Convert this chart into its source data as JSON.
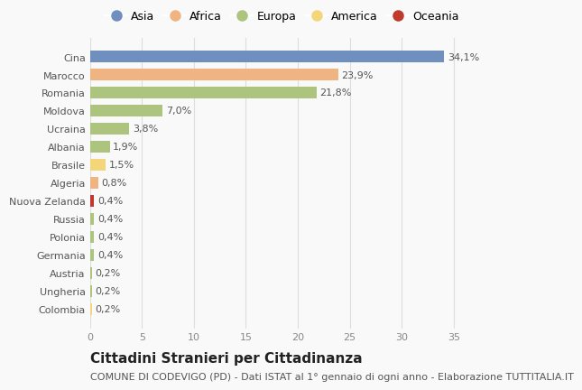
{
  "countries": [
    "Cina",
    "Marocco",
    "Romania",
    "Moldova",
    "Ucraina",
    "Albania",
    "Brasile",
    "Algeria",
    "Nuova Zelanda",
    "Russia",
    "Polonia",
    "Germania",
    "Austria",
    "Ungheria",
    "Colombia"
  ],
  "values": [
    34.1,
    23.9,
    21.8,
    7.0,
    3.8,
    1.9,
    1.5,
    0.8,
    0.4,
    0.4,
    0.4,
    0.4,
    0.2,
    0.2,
    0.2
  ],
  "labels": [
    "34,1%",
    "23,9%",
    "21,8%",
    "7,0%",
    "3,8%",
    "1,9%",
    "1,5%",
    "0,8%",
    "0,4%",
    "0,4%",
    "0,4%",
    "0,4%",
    "0,2%",
    "0,2%",
    "0,2%"
  ],
  "colors": [
    "#6f8fbe",
    "#f0b482",
    "#adc47e",
    "#adc47e",
    "#adc47e",
    "#adc47e",
    "#f5d57a",
    "#f0b482",
    "#c0392b",
    "#adc47e",
    "#adc47e",
    "#adc47e",
    "#adc47e",
    "#adc47e",
    "#f5d57a"
  ],
  "legend": [
    {
      "label": "Asia",
      "color": "#6f8fbe"
    },
    {
      "label": "Africa",
      "color": "#f0b482"
    },
    {
      "label": "Europa",
      "color": "#adc47e"
    },
    {
      "label": "America",
      "color": "#f5d57a"
    },
    {
      "label": "Oceania",
      "color": "#c0392b"
    }
  ],
  "xlim": [
    0,
    37
  ],
  "xticks": [
    0,
    5,
    10,
    15,
    20,
    25,
    30,
    35
  ],
  "title": "Cittadini Stranieri per Cittadinanza",
  "subtitle": "COMUNE DI CODEVIGO (PD) - Dati ISTAT al 1° gennaio di ogni anno - Elaborazione TUTTITALIA.IT",
  "bg_color": "#f9f9f9",
  "bar_height": 0.65,
  "title_fontsize": 11,
  "subtitle_fontsize": 8,
  "label_fontsize": 8,
  "tick_fontsize": 8,
  "legend_fontsize": 9
}
